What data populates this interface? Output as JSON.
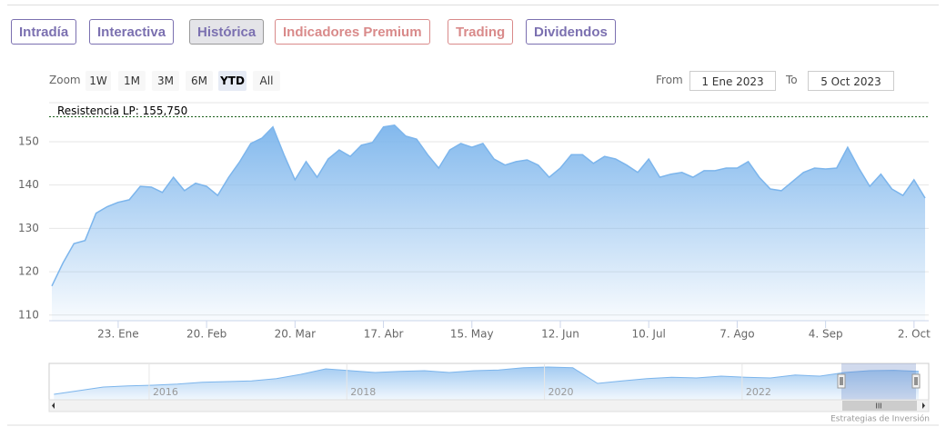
{
  "tabs": [
    {
      "label": "Intradía",
      "color": "#7b70b0"
    },
    {
      "label": "Interactiva",
      "color": "#7b70b0"
    },
    {
      "label": "Histórica",
      "color": "#7b70b0"
    },
    {
      "label": "Indicadores Premium",
      "color": "#d98a8a"
    },
    {
      "label": "Trading",
      "color": "#d98a8a"
    },
    {
      "label": "Dividendos",
      "color": "#7b70b0"
    }
  ],
  "active_tab_index": 2,
  "zoom": {
    "label": "Zoom",
    "buttons": [
      "1W",
      "1M",
      "3M",
      "6M",
      "YTD",
      "All"
    ],
    "selected_index": 4
  },
  "range": {
    "from_label": "From",
    "from": "1 Ene 2023",
    "to_label": "To",
    "to": "5 Oct 2023"
  },
  "credit": "Estrategias de Inversión",
  "chart_data": {
    "type": "area",
    "color": "#7cb5ec",
    "grid": true,
    "ylim": [
      108.7,
      159
    ],
    "yticks": [
      110,
      120,
      130,
      140,
      150
    ],
    "plot_line": {
      "value": 155.75,
      "label": "Resistencia LP: 155,750"
    },
    "categories": [
      null,
      null,
      null,
      null,
      null,
      null,
      "23. Ene",
      null,
      null,
      null,
      null,
      null,
      null,
      null,
      "20. Feb",
      null,
      null,
      null,
      null,
      null,
      null,
      null,
      "20. Mar",
      null,
      null,
      null,
      null,
      null,
      null,
      null,
      "17. Abr",
      null,
      null,
      null,
      null,
      null,
      null,
      null,
      "15. May",
      null,
      null,
      null,
      null,
      null,
      null,
      null,
      "12. Jun",
      null,
      null,
      null,
      null,
      null,
      null,
      null,
      "10. Jul",
      null,
      null,
      null,
      null,
      null,
      null,
      null,
      "7. Ago",
      null,
      null,
      null,
      null,
      null,
      null,
      null,
      "4. Sep",
      null,
      null,
      null,
      null,
      null,
      null,
      null,
      "2. Oct",
      null
    ],
    "values": [
      116.7,
      122,
      126.5,
      127.2,
      133.5,
      135,
      136,
      136.6,
      139.7,
      139.5,
      138.3,
      141.8,
      138.7,
      140.4,
      139.7,
      137.6,
      141.8,
      145.4,
      149.6,
      150.8,
      153.4,
      147,
      141.2,
      145.4,
      141.8,
      146,
      148.1,
      146.6,
      149.2,
      149.8,
      153.4,
      153.8,
      151.3,
      150.6,
      147,
      143.9,
      148.1,
      149.6,
      148.7,
      149.6,
      146,
      144.6,
      145.4,
      145.8,
      144.6,
      141.8,
      143.9,
      147,
      147,
      145,
      146.6,
      146,
      144.6,
      142.9,
      146,
      141.8,
      142.5,
      142.9,
      141.8,
      143.3,
      143.3,
      143.9,
      143.9,
      145.4,
      141.8,
      139.1,
      138.7,
      140.8,
      142.9,
      143.9,
      143.7,
      143.9,
      148.7,
      143.9,
      139.7,
      142.5,
      139.1,
      137.6,
      141.2,
      137
    ],
    "navigator": {
      "ylim": [
        60,
        160
      ],
      "categories": [
        null,
        null,
        null,
        null,
        "2016",
        null,
        null,
        null,
        null,
        null,
        null,
        null,
        "2018",
        null,
        null,
        null,
        null,
        null,
        null,
        null,
        "2020",
        null,
        null,
        null,
        null,
        null,
        null,
        null,
        "2022",
        null,
        null,
        null,
        null,
        null,
        null,
        null
      ],
      "values": [
        75,
        85,
        95,
        98,
        100,
        103,
        108,
        110,
        112,
        118,
        130,
        145,
        140,
        135,
        138,
        140,
        135,
        140,
        142,
        148,
        150,
        148,
        105,
        112,
        118,
        122,
        120,
        125,
        122,
        120,
        128,
        125,
        135,
        140,
        141,
        138
      ]
    }
  }
}
